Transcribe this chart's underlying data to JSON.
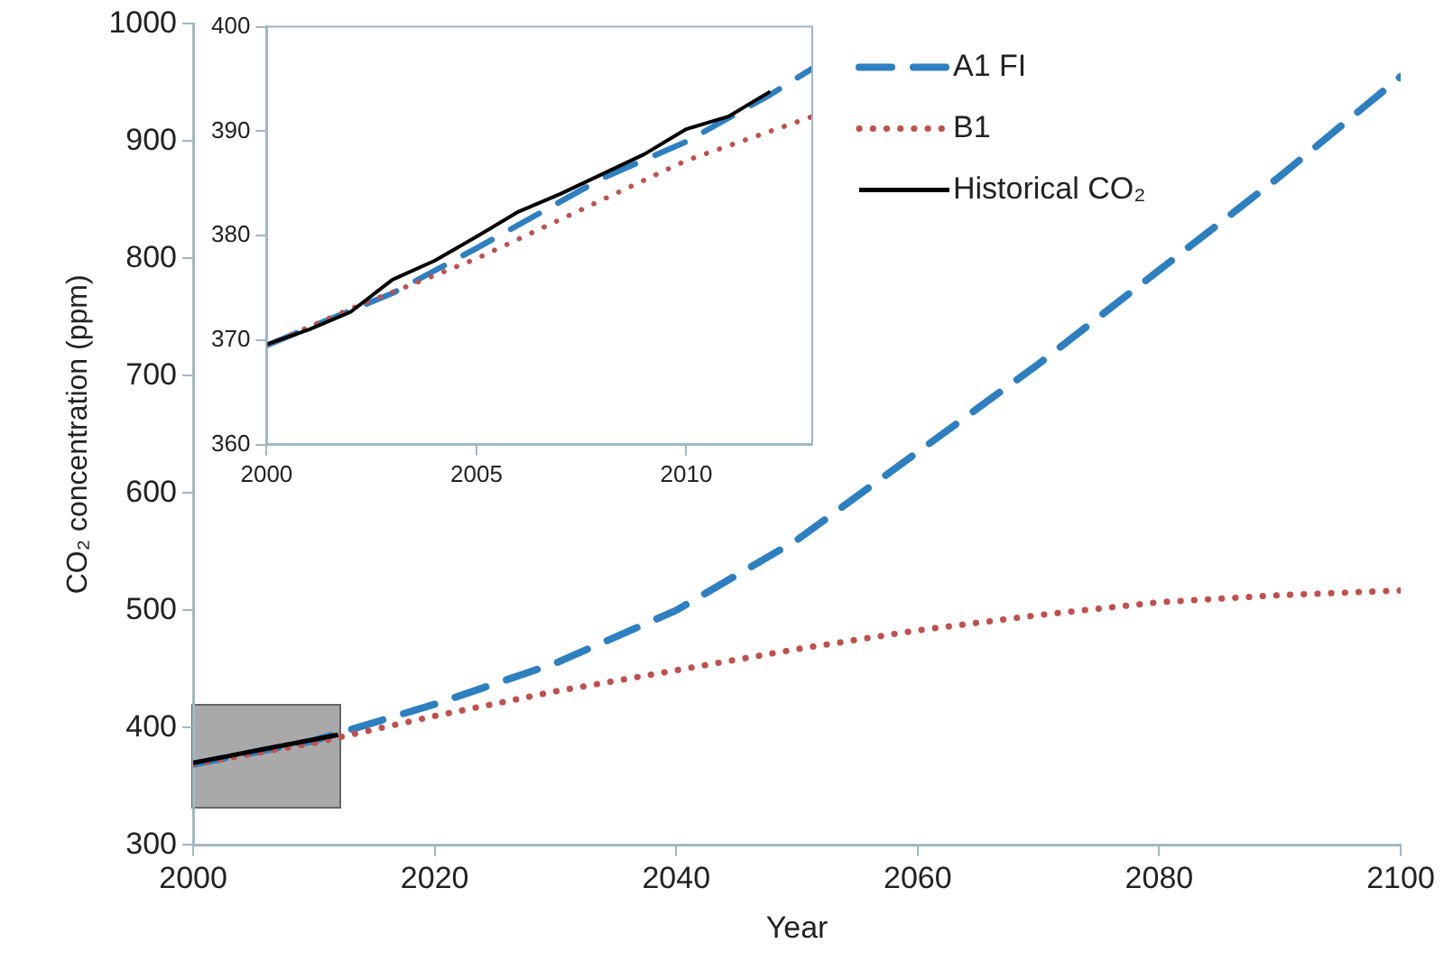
{
  "chart_data": [
    {
      "type": "line",
      "xlabel": "Year",
      "ylabel": "CO₂ concentration (ppm)",
      "xlim": [
        2000,
        2100
      ],
      "ylim": [
        300,
        1000
      ],
      "xticks": [
        2000,
        2020,
        2040,
        2060,
        2080,
        2100
      ],
      "yticks": [
        300,
        400,
        500,
        600,
        700,
        800,
        900,
        1000
      ],
      "grid": false,
      "legend": "top right",
      "marker": "none",
      "series": [
        {
          "name": "A1 FI",
          "color": "#2e7fc0",
          "line_style": "dashed",
          "x": [
            2000,
            2010,
            2020,
            2030,
            2040,
            2050,
            2060,
            2070,
            2080,
            2090,
            2100
          ],
          "values": [
            369,
            389,
            420,
            455,
            500,
            560,
            635,
            710,
            790,
            870,
            955
          ]
        },
        {
          "name": "B1",
          "color": "#c0504d",
          "line_style": "dotted",
          "x": [
            2000,
            2010,
            2020,
            2030,
            2040,
            2050,
            2060,
            2070,
            2080,
            2090,
            2100
          ],
          "values": [
            369,
            387,
            410,
            431,
            449,
            467,
            483,
            496,
            507,
            513,
            517
          ]
        },
        {
          "name": "Historical CO₂",
          "color": "#000000",
          "line_style": "solid",
          "x": [
            2000,
            2003,
            2006,
            2009,
            2012
          ],
          "values": [
            370,
            376,
            382,
            388,
            394
          ]
        }
      ]
    },
    {
      "type": "line",
      "xlim": [
        2000,
        2013
      ],
      "ylim": [
        360,
        400
      ],
      "xticks": [
        2000,
        2005,
        2010
      ],
      "yticks": [
        360,
        370,
        380,
        390,
        400
      ],
      "grid": false,
      "legend": false,
      "marker": "none",
      "series": [
        {
          "color": "#2e7fc0",
          "line_style": "dashed",
          "x": [
            2000,
            2003,
            2005,
            2008,
            2010,
            2012,
            2013
          ],
          "values": [
            369.5,
            374.5,
            378.8,
            385.5,
            389,
            393.5,
            396
          ]
        },
        {
          "color": "#c0504d",
          "line_style": "dotted",
          "x": [
            2000,
            2002,
            2005,
            2010,
            2013
          ],
          "values": [
            369.5,
            373,
            377.8,
            387.2,
            391.4
          ]
        },
        {
          "color": "#000000",
          "line_style": "solid",
          "x": [
            2000,
            2001,
            2002,
            2003,
            2004,
            2005,
            2006,
            2007,
            2008,
            2009,
            2010,
            2011,
            2012
          ],
          "values": [
            369.6,
            371,
            372.7,
            375.8,
            377.6,
            379.9,
            382.3,
            384,
            385.9,
            387.8,
            390.2,
            391.4,
            393.8
          ]
        }
      ]
    }
  ]
}
